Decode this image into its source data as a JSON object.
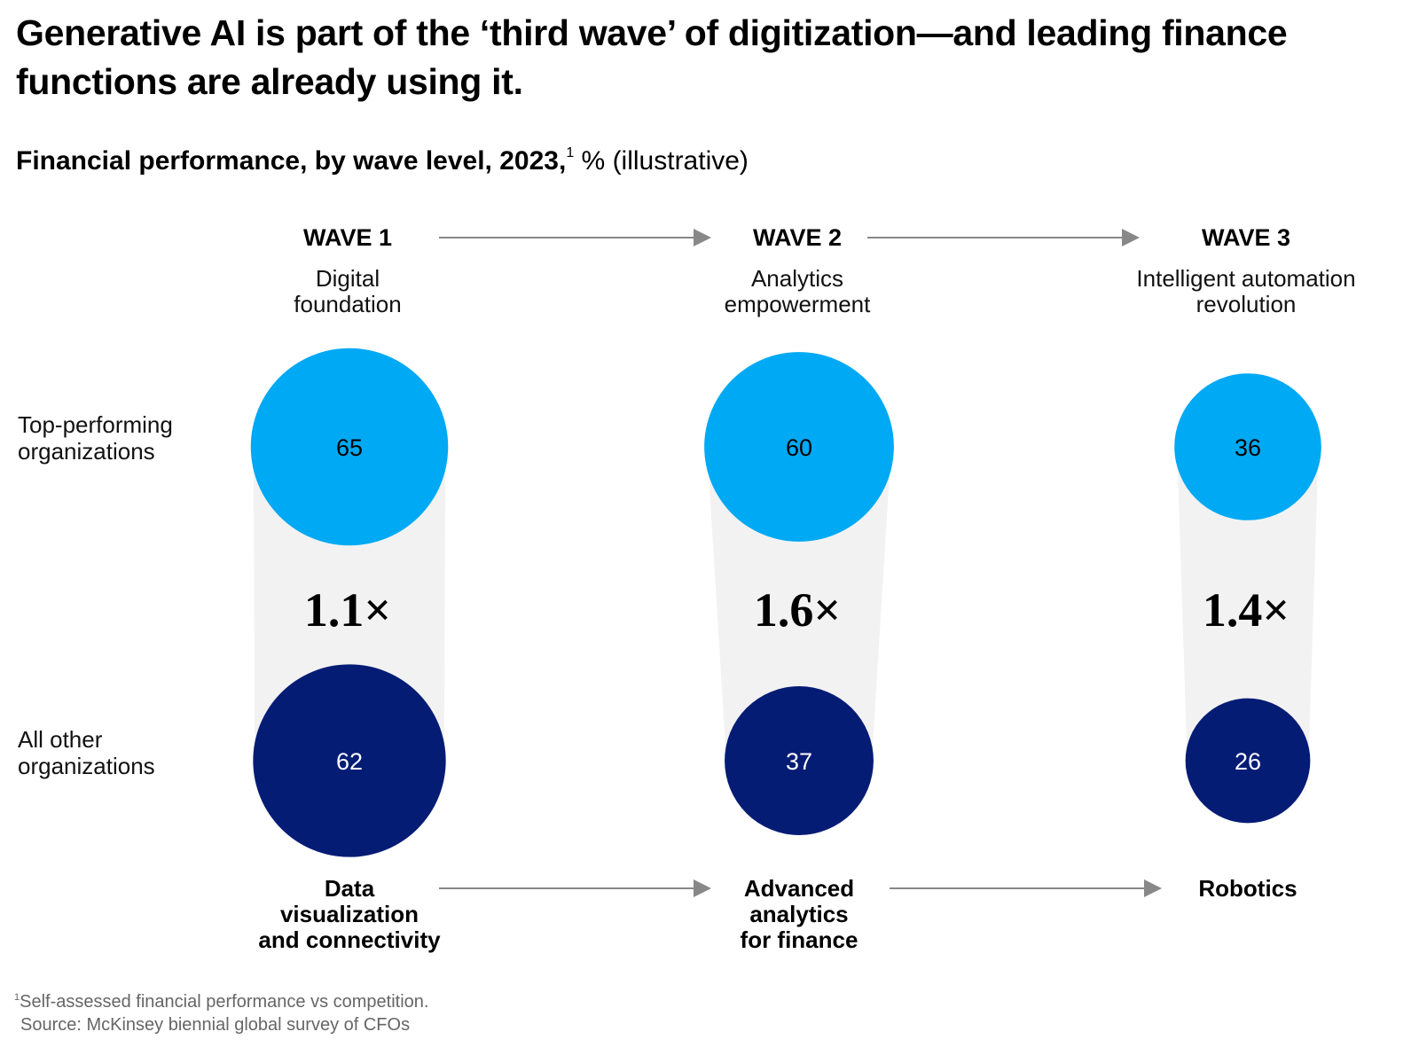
{
  "title": "Generative AI is part of the ‘third wave’ of digitization—and leading finance functions are already using it.",
  "subtitle": {
    "bold": "Financial performance, by wave level, 2023,",
    "footnote_mark": "1",
    "rest": " % (illustrative)"
  },
  "row_labels": {
    "top": "Top-performing organizations",
    "bottom": "All other organizations"
  },
  "footer": {
    "footnote_mark": "1",
    "note": "Self-assessed financial performance vs competition.",
    "source": "Source: McKinsey biennial global survey of CFOs"
  },
  "colors": {
    "top": "#00a9f4",
    "bottom": "#051c75",
    "band": "#f2f2f2",
    "arrow": "#888888"
  },
  "chart_data": {
    "type": "bubble",
    "series": [
      {
        "name": "Top-performing organizations",
        "values": [
          65,
          60,
          36
        ]
      },
      {
        "name": "All other organizations",
        "values": [
          62,
          37,
          26
        ]
      }
    ],
    "waves": [
      {
        "label": "WAVE 1",
        "name": [
          "Digital",
          "foundation"
        ],
        "multiplier": "1.1×",
        "technology": [
          "Data",
          "visualization",
          "and connectivity"
        ]
      },
      {
        "label": "WAVE 2",
        "name": [
          "Analytics",
          "empowerment"
        ],
        "multiplier": "1.6×",
        "technology": [
          "Advanced",
          "analytics",
          "for finance"
        ]
      },
      {
        "label": "WAVE 3",
        "name": [
          "Intelligent automation",
          "revolution"
        ],
        "multiplier": "1.4×",
        "technology": [
          "Robotics"
        ]
      }
    ]
  }
}
